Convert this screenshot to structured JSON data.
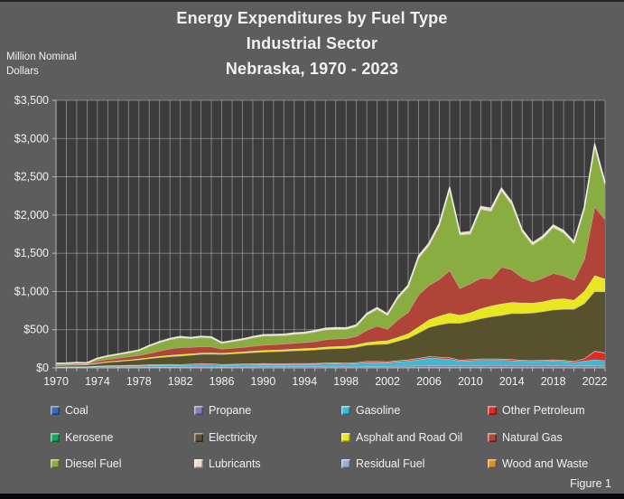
{
  "title": {
    "line1": "Energy Expenditures by Fuel Type",
    "line2": "Industrial Sector",
    "line3": "Nebraska, 1970 - 2023"
  },
  "y_axis_unit": {
    "line1": "Million Nominal",
    "line2": "Dollars"
  },
  "figure_label": "Figure 1",
  "colors": {
    "window_background": "#5d5d5d",
    "plot_background": "#3c3c3c",
    "gridline": "#a3a3a3",
    "axis_line": "#b8b8b8",
    "text": "#f2f2f2",
    "top_edge": "#23232e",
    "bottom_edge": "#08080c"
  },
  "chart_data": {
    "type": "area",
    "stacked": true,
    "title": "Energy Expenditures by Fuel Type, Industrial Sector, Nebraska, 1970 - 2023",
    "ylabel": "Million Nominal Dollars",
    "ylim": [
      0,
      3500
    ],
    "y_tick_step": 500,
    "y_tick_labels": [
      "$0",
      "$500",
      "$1,000",
      "$1,500",
      "$2,000",
      "$2,500",
      "$3,000",
      "$3,500"
    ],
    "x_tick_label_years": [
      1970,
      1974,
      1978,
      1982,
      1986,
      1990,
      1994,
      1998,
      2002,
      2006,
      2010,
      2014,
      2018,
      2022
    ],
    "grid": "both",
    "legend_position": "bottom",
    "x": [
      1970,
      1971,
      1972,
      1973,
      1974,
      1975,
      1976,
      1977,
      1978,
      1979,
      1980,
      1981,
      1982,
      1983,
      1984,
      1985,
      1986,
      1987,
      1988,
      1989,
      1990,
      1991,
      1992,
      1993,
      1994,
      1995,
      1996,
      1997,
      1998,
      1999,
      2000,
      2001,
      2002,
      2003,
      2004,
      2005,
      2006,
      2007,
      2008,
      2009,
      2010,
      2011,
      2012,
      2013,
      2014,
      2015,
      2016,
      2017,
      2018,
      2019,
      2020,
      2021,
      2022,
      2023
    ],
    "series": [
      {
        "name": "Coal",
        "color": "#3a6bb5",
        "values": [
          1,
          1,
          1,
          1,
          2,
          2,
          3,
          3,
          3,
          4,
          4,
          4,
          4,
          5,
          5,
          5,
          5,
          5,
          5,
          5,
          5,
          5,
          6,
          6,
          6,
          6,
          7,
          7,
          7,
          7,
          8,
          8,
          8,
          9,
          9,
          9,
          10,
          10,
          10,
          10,
          10,
          10,
          10,
          10,
          10,
          9,
          9,
          9,
          9,
          9,
          8,
          8,
          8,
          8
        ]
      },
      {
        "name": "Propane",
        "color": "#8a7ab8",
        "values": [
          2,
          2,
          3,
          3,
          5,
          6,
          6,
          7,
          7,
          8,
          8,
          8,
          8,
          9,
          9,
          9,
          8,
          9,
          10,
          11,
          12,
          12,
          12,
          13,
          13,
          13,
          14,
          14,
          14,
          15,
          15,
          16,
          16,
          17,
          18,
          20,
          25,
          24,
          22,
          20,
          22,
          24,
          26,
          28,
          26,
          24,
          25,
          24,
          26,
          24,
          20,
          24,
          22,
          20
        ]
      },
      {
        "name": "Gasoline",
        "color": "#3fb8d4",
        "values": [
          8,
          9,
          10,
          9,
          14,
          16,
          18,
          19,
          20,
          23,
          25,
          26,
          25,
          26,
          27,
          28,
          25,
          26,
          28,
          30,
          32,
          31,
          30,
          31,
          31,
          32,
          35,
          36,
          34,
          38,
          50,
          48,
          45,
          55,
          65,
          80,
          95,
          90,
          85,
          60,
          65,
          70,
          68,
          65,
          62,
          55,
          52,
          55,
          58,
          55,
          45,
          60,
          80,
          70
        ]
      },
      {
        "name": "Other Petroleum",
        "color": "#dd2c22",
        "values": [
          3,
          3,
          3,
          3,
          5,
          6,
          6,
          7,
          7,
          8,
          9,
          10,
          10,
          12,
          18,
          15,
          10,
          10,
          10,
          10,
          10,
          10,
          10,
          10,
          10,
          10,
          11,
          11,
          11,
          12,
          15,
          16,
          14,
          15,
          16,
          18,
          20,
          20,
          20,
          15,
          15,
          16,
          16,
          15,
          15,
          14,
          13,
          14,
          15,
          14,
          15,
          30,
          110,
          100
        ]
      },
      {
        "name": "Kerosene",
        "color": "#16a85a",
        "values": [
          1,
          1,
          1,
          1,
          1,
          1,
          1,
          1,
          1,
          1,
          1,
          1,
          1,
          1,
          1,
          1,
          1,
          1,
          1,
          1,
          1,
          1,
          1,
          1,
          1,
          1,
          1,
          1,
          1,
          1,
          1,
          1,
          1,
          1,
          1,
          1,
          1,
          1,
          1,
          1,
          1,
          1,
          1,
          1,
          1,
          1,
          1,
          1,
          1,
          1,
          1,
          1,
          1,
          1
        ]
      },
      {
        "name": "Electricity",
        "color": "#57522d",
        "values": [
          18,
          20,
          22,
          25,
          32,
          45,
          52,
          60,
          70,
          80,
          90,
          100,
          110,
          115,
          120,
          125,
          130,
          135,
          140,
          145,
          150,
          155,
          160,
          165,
          170,
          175,
          180,
          185,
          190,
          200,
          210,
          220,
          230,
          255,
          280,
          330,
          380,
          420,
          450,
          480,
          500,
          525,
          550,
          570,
          600,
          610,
          620,
          635,
          650,
          665,
          680,
          720,
          780,
          800
        ]
      },
      {
        "name": "Asphalt and Road Oil",
        "color": "#e9e721",
        "values": [
          4,
          4,
          5,
          5,
          7,
          8,
          9,
          10,
          12,
          14,
          16,
          18,
          20,
          18,
          17,
          16,
          15,
          16,
          18,
          19,
          20,
          21,
          22,
          23,
          24,
          25,
          27,
          28,
          30,
          32,
          35,
          40,
          45,
          50,
          60,
          80,
          100,
          115,
          130,
          105,
          110,
          130,
          140,
          150,
          145,
          140,
          130,
          130,
          140,
          140,
          120,
          160,
          210,
          165
        ]
      },
      {
        "name": "Natural Gas",
        "color": "#b04438",
        "values": [
          12,
          12,
          13,
          10,
          25,
          30,
          35,
          40,
          45,
          55,
          70,
          85,
          90,
          85,
          85,
          80,
          55,
          58,
          60,
          65,
          70,
          72,
          75,
          78,
          80,
          85,
          95,
          100,
          100,
          110,
          160,
          200,
          150,
          230,
          280,
          420,
          450,
          480,
          560,
          350,
          380,
          400,
          360,
          480,
          430,
          330,
          280,
          310,
          340,
          300,
          260,
          420,
          900,
          780
        ]
      },
      {
        "name": "Diesel Fuel",
        "color": "#8aad42",
        "values": [
          8,
          8,
          9,
          7,
          30,
          38,
          45,
          52,
          60,
          90,
          110,
          120,
          130,
          115,
          120,
          115,
          75,
          85,
          95,
          110,
          120,
          115,
          110,
          115,
          115,
          125,
          130,
          125,
          120,
          130,
          200,
          220,
          180,
          280,
          330,
          480,
          520,
          700,
          1050,
          700,
          650,
          900,
          880,
          1000,
          850,
          600,
          480,
          520,
          600,
          560,
          480,
          650,
          780,
          450
        ]
      },
      {
        "name": "Lubricants",
        "color": "#ecdfc6",
        "values": [
          3,
          3,
          3,
          3,
          4,
          5,
          5,
          6,
          6,
          7,
          8,
          9,
          10,
          9,
          9,
          9,
          8,
          9,
          10,
          11,
          12,
          12,
          12,
          13,
          13,
          14,
          15,
          15,
          14,
          15,
          15,
          16,
          15,
          17,
          20,
          24,
          25,
          28,
          30,
          22,
          25,
          30,
          32,
          28,
          28,
          24,
          22,
          24,
          26,
          25,
          20,
          28,
          35,
          30
        ]
      },
      {
        "name": "Residual Fuel",
        "color": "#96b0cf",
        "values": [
          2,
          2,
          2,
          2,
          3,
          3,
          3,
          3,
          3,
          4,
          4,
          4,
          3,
          3,
          3,
          3,
          2,
          2,
          2,
          2,
          3,
          3,
          3,
          3,
          3,
          3,
          4,
          4,
          3,
          3,
          4,
          4,
          3,
          4,
          4,
          5,
          5,
          5,
          5,
          4,
          5,
          5,
          5,
          5,
          5,
          4,
          4,
          4,
          4,
          4,
          3,
          4,
          5,
          4
        ]
      },
      {
        "name": "Wood and Waste",
        "color": "#d9912f",
        "values": [
          1,
          1,
          1,
          1,
          1,
          1,
          1,
          2,
          2,
          2,
          2,
          2,
          2,
          2,
          2,
          2,
          2,
          2,
          2,
          2,
          2,
          2,
          2,
          2,
          2,
          2,
          2,
          2,
          2,
          2,
          2,
          3,
          3,
          3,
          3,
          3,
          3,
          3,
          3,
          3,
          3,
          3,
          3,
          3,
          3,
          3,
          3,
          3,
          3,
          3,
          3,
          3,
          3,
          3
        ]
      }
    ]
  }
}
